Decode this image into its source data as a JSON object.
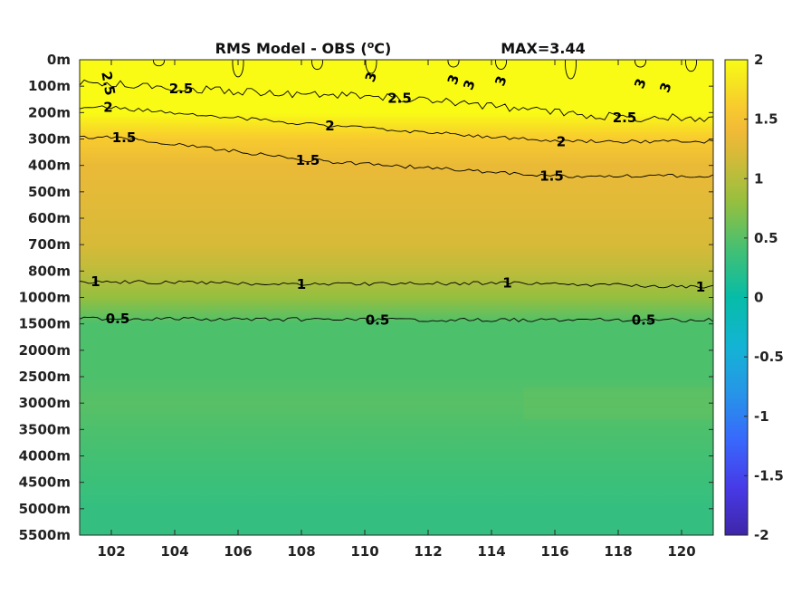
{
  "chart_data": {
    "type": "heatmap",
    "title": "RMS Model - OBS (",
    "title_superscript": "o",
    "title_suffix": "C)",
    "max_label": "MAX=3.44",
    "xlabel": "",
    "ylabel": "",
    "x_ticks": [
      "102",
      "104",
      "106",
      "108",
      "110",
      "112",
      "114",
      "116",
      "118",
      "120"
    ],
    "x_tick_values": [
      102,
      104,
      106,
      108,
      110,
      112,
      114,
      116,
      118,
      120
    ],
    "xlim": [
      101,
      121
    ],
    "y_ticks": [
      "0m",
      "100m",
      "200m",
      "300m",
      "400m",
      "500m",
      "600m",
      "700m",
      "800m",
      "1000m",
      "1500m",
      "2000m",
      "2500m",
      "3000m",
      "3500m",
      "4000m",
      "4500m",
      "5000m",
      "5500m"
    ],
    "colorbar": {
      "range": [
        -2,
        2
      ],
      "ticks": [
        "2",
        "1.5",
        "1",
        "0.5",
        "0",
        "-0.5",
        "-1",
        "-1.5",
        "-2"
      ],
      "tick_values": [
        2,
        1.5,
        1,
        0.5,
        0,
        -0.5,
        -1,
        -1.5,
        -2
      ],
      "colormap": "parula"
    },
    "depth_profile": [
      {
        "depth": "0m",
        "value": 3.0
      },
      {
        "depth": "100m",
        "value": 2.6
      },
      {
        "depth": "200m",
        "value": 2.1
      },
      {
        "depth": "300m",
        "value": 1.6
      },
      {
        "depth": "400m",
        "value": 1.35
      },
      {
        "depth": "500m",
        "value": 1.3
      },
      {
        "depth": "600m",
        "value": 1.25
      },
      {
        "depth": "700m",
        "value": 1.2
      },
      {
        "depth": "800m",
        "value": 1.05
      },
      {
        "depth": "1000m",
        "value": 0.8
      },
      {
        "depth": "1500m",
        "value": 0.45
      },
      {
        "depth": "2000m",
        "value": 0.45
      },
      {
        "depth": "2500m",
        "value": 0.45
      },
      {
        "depth": "3000m",
        "value": 0.5
      },
      {
        "depth": "3500m",
        "value": 0.45
      },
      {
        "depth": "4000m",
        "value": 0.4
      },
      {
        "depth": "4500m",
        "value": 0.35
      },
      {
        "depth": "5000m",
        "value": 0.3
      },
      {
        "depth": "5500m",
        "value": 0.3
      }
    ],
    "contours": [
      {
        "level": "3",
        "labels": [
          {
            "x": 110.2,
            "depth_index": 0.65
          },
          {
            "x": 112.8,
            "depth_index": 0.75
          },
          {
            "x": 113.3,
            "depth_index": 0.95
          },
          {
            "x": 114.3,
            "depth_index": 0.8
          },
          {
            "x": 118.7,
            "depth_index": 0.9
          },
          {
            "x": 119.5,
            "depth_index": 1.05
          }
        ]
      },
      {
        "level": "2.5",
        "labels": [
          {
            "x": 101.9,
            "depth_index": 0.9
          },
          {
            "x": 104.2,
            "depth_index": 1.1
          },
          {
            "x": 111.1,
            "depth_index": 1.45
          },
          {
            "x": 118.2,
            "depth_index": 2.2
          }
        ]
      },
      {
        "level": "2",
        "labels": [
          {
            "x": 101.9,
            "depth_index": 1.8
          },
          {
            "x": 108.9,
            "depth_index": 2.5
          },
          {
            "x": 116.2,
            "depth_index": 3.1
          }
        ]
      },
      {
        "level": "1.5",
        "labels": [
          {
            "x": 102.4,
            "depth_index": 2.95
          },
          {
            "x": 108.2,
            "depth_index": 3.8
          },
          {
            "x": 115.9,
            "depth_index": 4.4
          }
        ]
      },
      {
        "level": "1",
        "labels": [
          {
            "x": 101.5,
            "depth_index": 8.4
          },
          {
            "x": 108.0,
            "depth_index": 8.5
          },
          {
            "x": 114.5,
            "depth_index": 8.45
          },
          {
            "x": 120.6,
            "depth_index": 8.6
          }
        ]
      },
      {
        "level": "0.5",
        "labels": [
          {
            "x": 102.2,
            "depth_index": 9.8
          },
          {
            "x": 110.4,
            "depth_index": 9.85
          },
          {
            "x": 118.8,
            "depth_index": 9.85
          }
        ]
      }
    ]
  }
}
